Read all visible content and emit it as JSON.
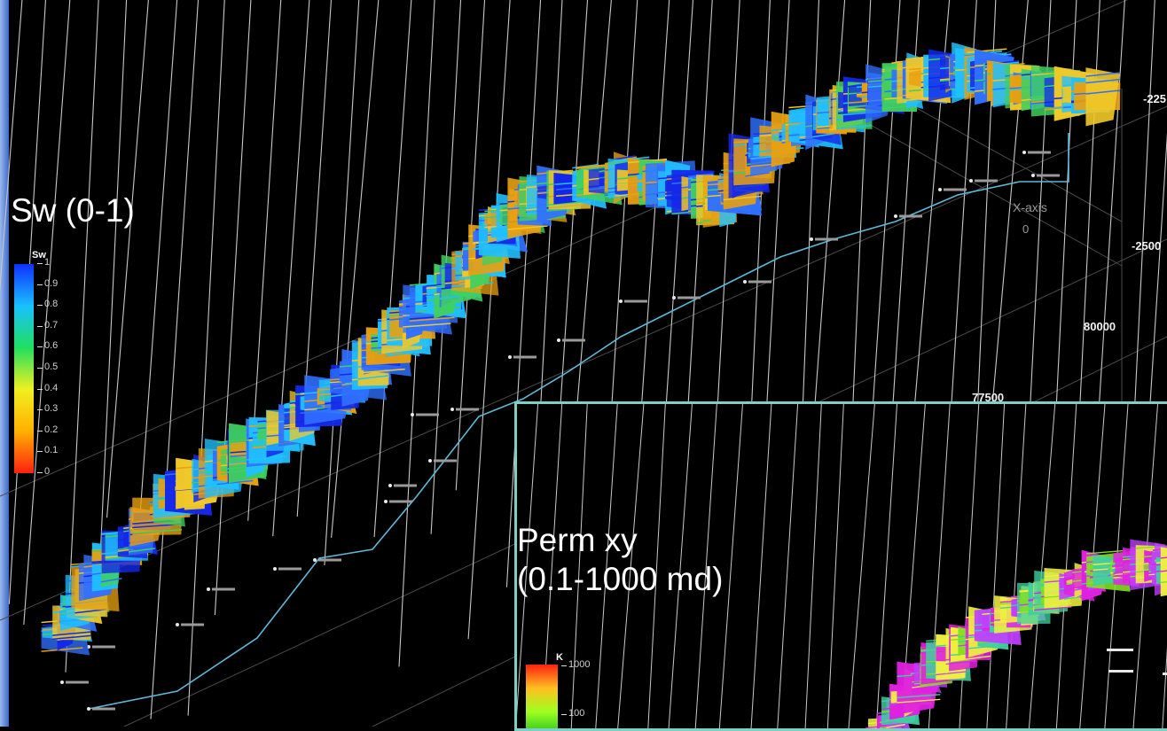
{
  "main_view": {
    "property_label": "Sw (0-1)",
    "colorbar": {
      "title": "Sw",
      "ticks": [
        "1",
        "0.9",
        "0.8",
        "0.7",
        "0.6",
        "0.5",
        "0.4",
        "0.3",
        "0.2",
        "0.1",
        "0"
      ],
      "colors": [
        "#1030ff",
        "#18c0ff",
        "#20e060",
        "#f0f020",
        "#ffb000",
        "#ff2010"
      ]
    },
    "axis": {
      "title": "X-axis",
      "zero": "0",
      "x_ticks": [
        "80000",
        "77500"
      ],
      "z_ticks": [
        "-225",
        "-2500"
      ]
    }
  },
  "inset_view": {
    "property_label": "Perm xy\n(0.1-1000 md)",
    "colorbar": {
      "title": "K",
      "ticks": [
        "1000",
        "100"
      ],
      "colors": [
        "#ff2010",
        "#ffc020",
        "#a0ff20",
        "#20c020"
      ]
    }
  },
  "colors": {
    "frame": "#7fcfc3",
    "well_lines": "#c8c8c8",
    "fault_line": "#5fb8d6",
    "reservoir_main": [
      "#1428e8",
      "#e8a010",
      "#f0c828",
      "#3070ff",
      "#20c0ff",
      "#40d060"
    ],
    "reservoir_inset": [
      "#e020e0",
      "#80e020",
      "#f0f040",
      "#40d0a0",
      "#c040ff"
    ]
  }
}
